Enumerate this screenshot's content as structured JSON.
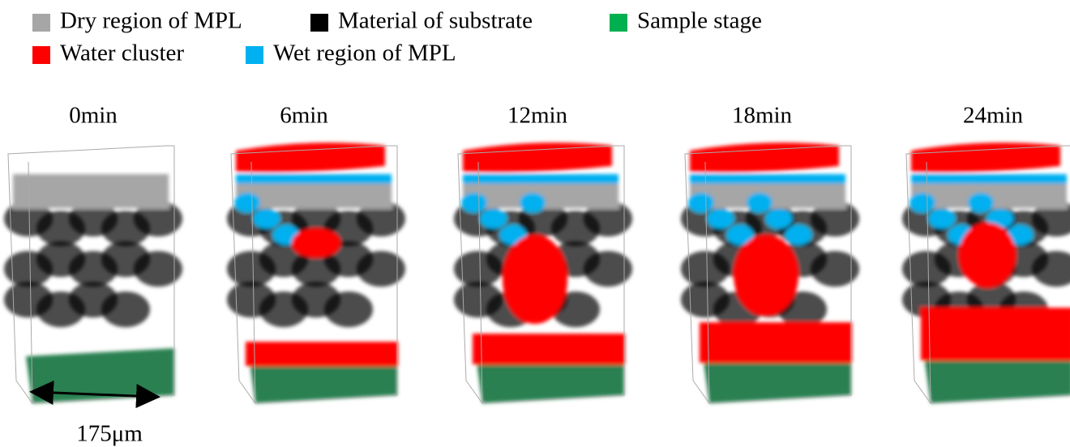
{
  "legend": [
    {
      "label": "Dry region of MPL",
      "color": "#a6a6a6"
    },
    {
      "label": "Material of substrate",
      "color": "#000000"
    },
    {
      "label": "Sample stage",
      "color": "#00b050"
    },
    {
      "label": "Water cluster",
      "color": "#ff0000"
    },
    {
      "label": "Wet region of MPL",
      "color": "#00b0f0"
    }
  ],
  "panels": [
    {
      "label": "0min"
    },
    {
      "label": "6min"
    },
    {
      "label": "12min"
    },
    {
      "label": "18min"
    },
    {
      "label": "24min"
    }
  ],
  "scale_bar": {
    "label": "175μm"
  }
}
